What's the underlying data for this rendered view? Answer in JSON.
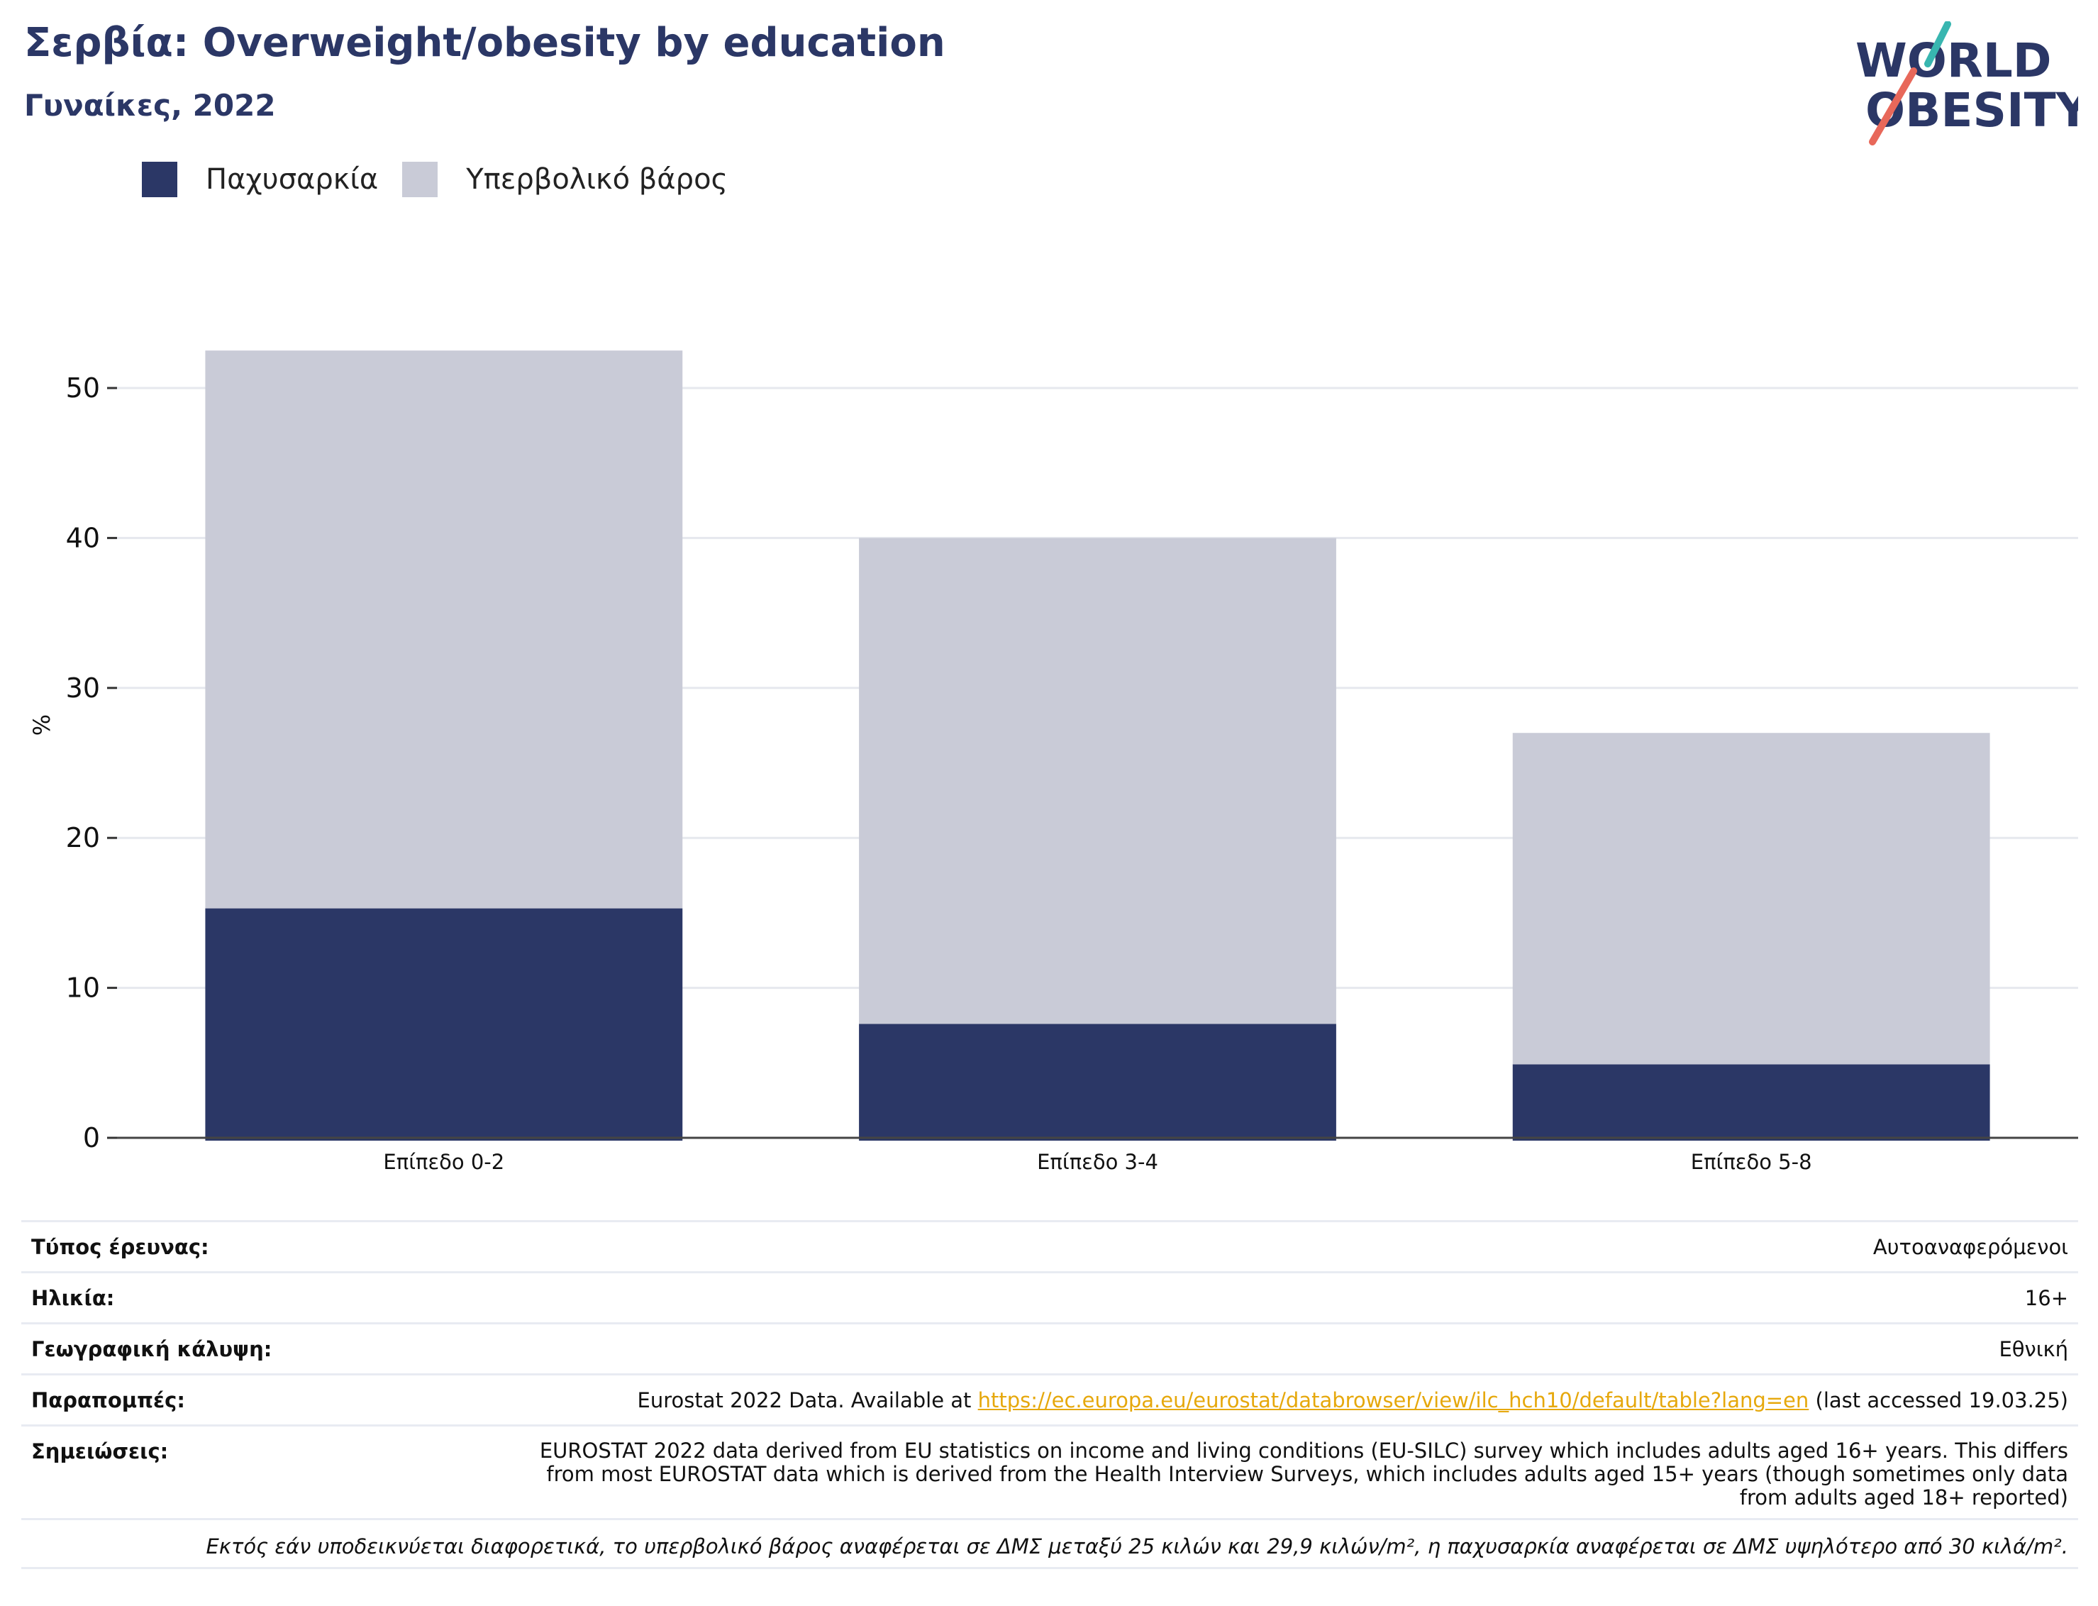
{
  "header": {
    "title": "Σερβία: Overweight/obesity by education",
    "subtitle": "Γυναίκες, 2022"
  },
  "logo": {
    "line1": "WORLD",
    "line2": "OBESITY"
  },
  "colors": {
    "obesity": "#2b3766",
    "overweight": "#c9cbd7",
    "link": "#e6a80c",
    "brand": "#2b3766"
  },
  "chart_data": {
    "type": "bar",
    "stacked": true,
    "categories": [
      "Επίπεδο 0-2",
      "Επίπεδο 3-4",
      "Επίπεδο 5-8"
    ],
    "series": [
      {
        "name": "Παχυσαρκία",
        "values": [
          15.3,
          7.6,
          4.9
        ]
      },
      {
        "name": "Υπερβολικό βάρος",
        "values": [
          37.2,
          32.4,
          22.1
        ]
      }
    ],
    "ylabel": "%",
    "ylim": [
      0,
      55
    ],
    "yticks": [
      0,
      10,
      20,
      30,
      40,
      50
    ],
    "grid": true,
    "legend": "top-left"
  },
  "info": [
    {
      "label": "Τύπος έρευνας:",
      "value": "Αυτοαναφερόμενοι"
    },
    {
      "label": "Ηλικία:",
      "value": "16+"
    },
    {
      "label": "Γεωγραφική κάλυψη:",
      "value": "Εθνική"
    }
  ],
  "references": {
    "label": "Παραπομπές:",
    "before": "Eurostat 2022 Data. Available at ",
    "link": "https://ec.europa.eu/eurostat/databrowser/view/ilc_hch10/default/table?lang=en",
    "after": " (last accessed 19.03.25)"
  },
  "notes": {
    "label": "Σημειώσεις:",
    "value": "EUROSTAT 2022 data derived from EU statistics on income and living conditions (EU-SILC) survey which includes adults aged 16+ years. This differs from most EUROSTAT data which is derived from the Health Interview Surveys, which includes adults aged 15+ years (though sometimes only data from adults aged 18+ reported)"
  },
  "footnote": "Εκτός εάν υποδεικνύεται διαφορετικά, το υπερβολικό βάρος αναφέρεται σε ΔΜΣ μεταξύ 25 κιλών και 29,9 κιλών/m², η παχυσαρκία αναφέρεται σε ΔΜΣ υψηλότερο από 30 κιλά/m²."
}
